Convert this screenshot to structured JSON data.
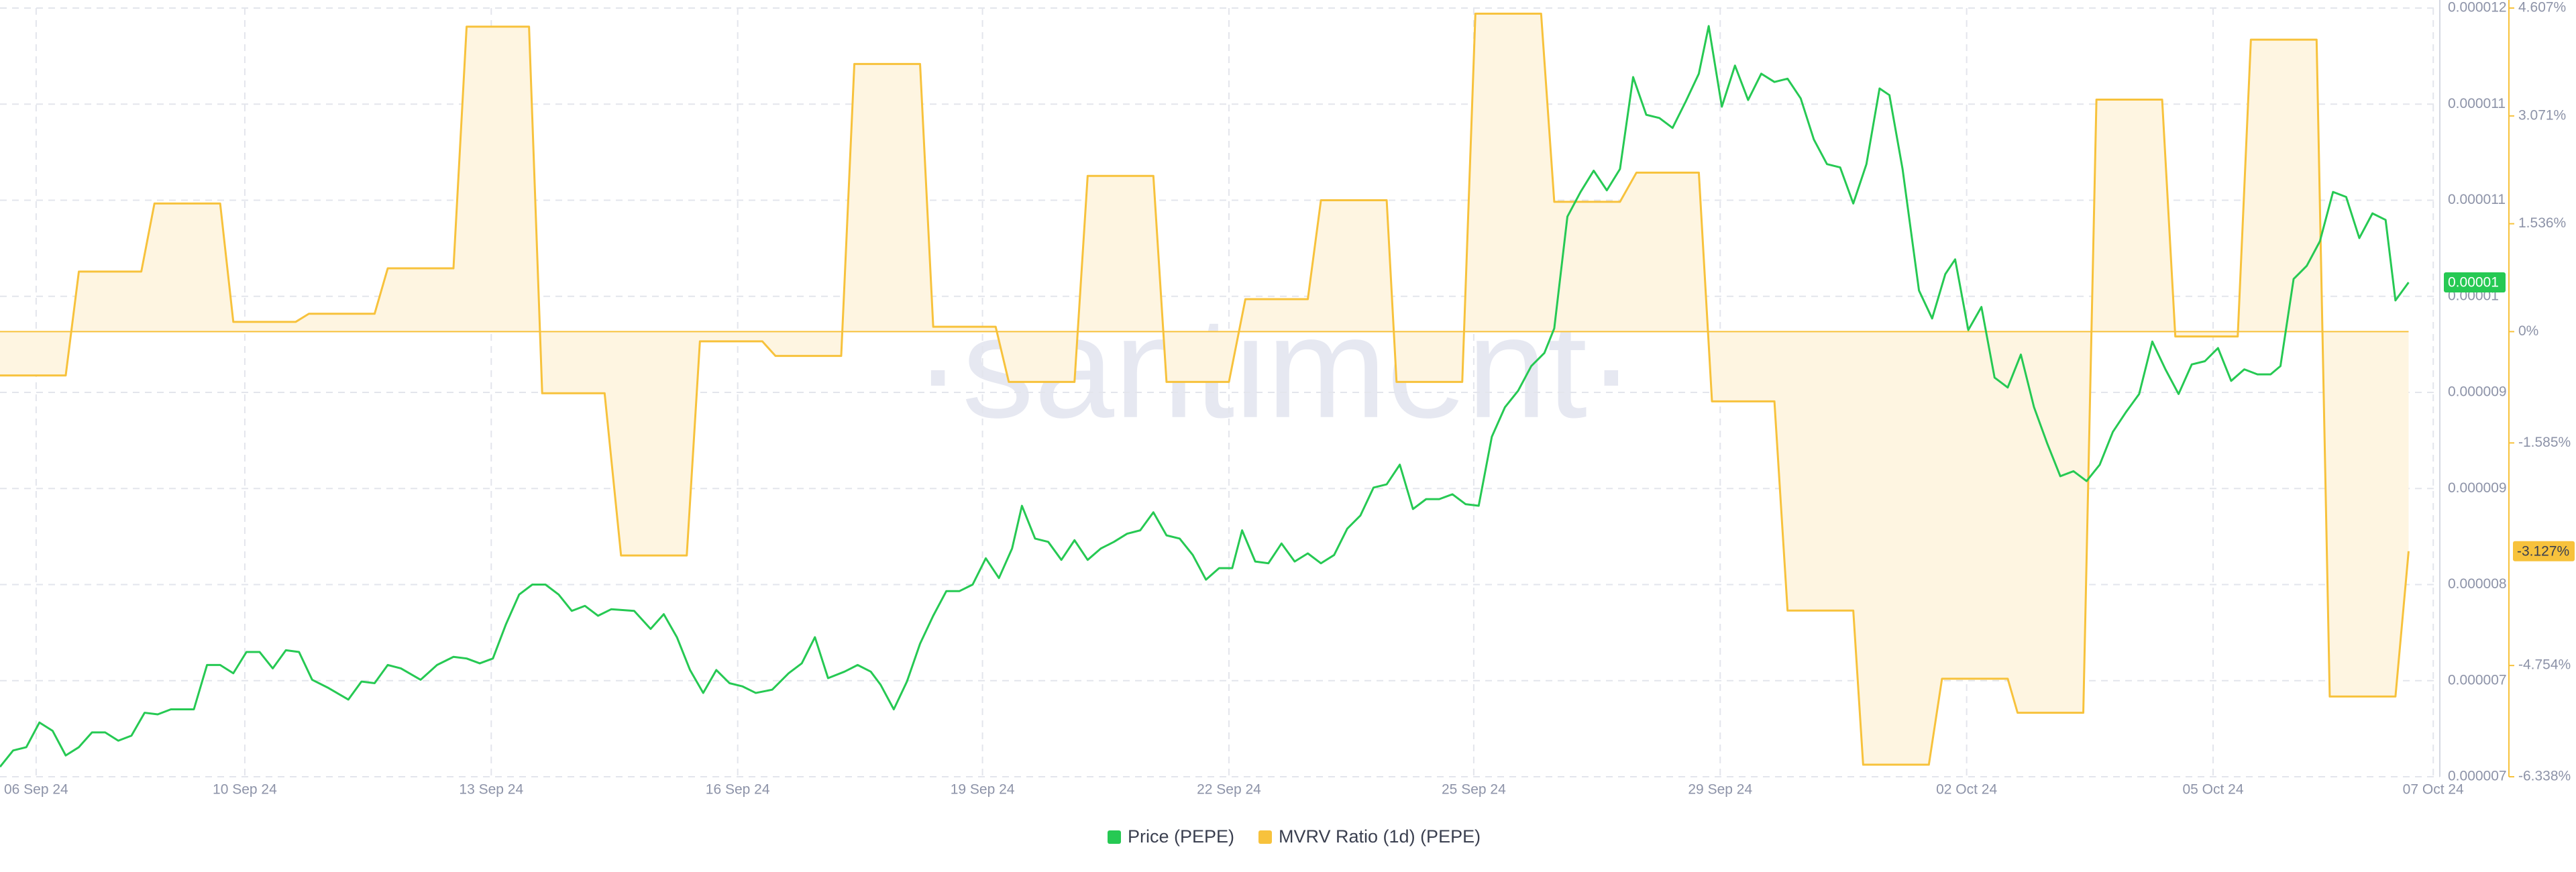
{
  "chart_data": {
    "type": "line",
    "watermark": "·santiment·",
    "grid": true,
    "xlim": [
      0,
      742.5
    ],
    "xticks": [
      {
        "value": 11,
        "label": "06 Sep 24"
      },
      {
        "value": 74.5,
        "label": "10 Sep 24"
      },
      {
        "value": 149.5,
        "label": "13 Sep 24"
      },
      {
        "value": 224.5,
        "label": "16 Sep 24"
      },
      {
        "value": 299,
        "label": "19 Sep 24"
      },
      {
        "value": 374,
        "label": "22 Sep 24"
      },
      {
        "value": 448.5,
        "label": "25 Sep 24"
      },
      {
        "value": 523.5,
        "label": "29 Sep 24"
      },
      {
        "value": 598.5,
        "label": "02 Oct 24"
      },
      {
        "value": 673.5,
        "label": "05 Oct 24"
      },
      {
        "value": 740.5,
        "label": "07 Oct 24"
      }
    ],
    "ylim": [
      6.8e-06,
      1.2e-05
    ],
    "yticks": [
      {
        "value": 6.8e-06,
        "label": "0.000007"
      },
      {
        "value": 7.45e-06,
        "label": "0.000007"
      },
      {
        "value": 8.1e-06,
        "label": "0.000008"
      },
      {
        "value": 8.75e-06,
        "label": "0.000009"
      },
      {
        "value": 9.4e-06,
        "label": "0.000009"
      },
      {
        "value": 1.005e-05,
        "label": "0.00001"
      },
      {
        "value": 1.07e-05,
        "label": "0.000011"
      },
      {
        "value": 1.135e-05,
        "label": "0.000011"
      },
      {
        "value": 1.2e-05,
        "label": "0.000012"
      }
    ],
    "y2lim": [
      -6.338,
      4.607
    ],
    "y2ticks": [
      {
        "value": -6.338,
        "label": "-6.338%"
      },
      {
        "value": -4.754,
        "label": "-4.754%"
      },
      {
        "value": -1.585,
        "label": "-1.585%"
      },
      {
        "value": 0,
        "label": "0%"
      },
      {
        "value": 1.536,
        "label": "1.536%"
      },
      {
        "value": 3.071,
        "label": "3.071%"
      },
      {
        "value": 4.607,
        "label": "4.607%"
      }
    ],
    "series": [
      {
        "name": "Price (PEPE)",
        "color": "#26c953",
        "axis": "y",
        "last_label": "0.00001",
        "x": [
          0,
          4,
          8,
          12,
          16,
          20,
          24,
          28,
          32,
          36,
          40,
          44,
          48,
          52,
          59,
          63,
          67,
          71,
          75,
          79,
          83,
          87,
          91,
          95,
          100,
          106,
          110,
          114,
          118,
          122,
          128,
          133,
          138,
          142,
          146,
          150,
          154,
          158,
          162,
          166,
          170,
          174,
          178,
          182,
          186,
          193,
          198,
          202,
          206,
          210,
          214,
          218,
          222,
          226,
          230,
          235,
          240,
          244,
          248,
          252,
          257,
          261,
          265,
          268,
          272,
          276,
          280,
          284,
          288,
          292,
          296,
          300,
          304,
          308,
          311,
          315,
          319,
          323,
          327,
          331,
          335,
          339,
          343,
          347,
          351,
          355,
          359,
          363,
          367,
          371,
          375,
          378,
          382,
          386,
          390,
          394,
          398,
          402,
          406,
          410,
          414,
          418,
          422,
          426,
          430,
          434,
          438,
          442,
          446,
          450,
          454,
          458,
          462,
          466,
          470,
          473,
          477,
          481,
          485,
          489,
          493,
          497,
          501,
          505,
          509,
          513,
          517,
          520,
          524,
          528,
          532,
          536,
          540,
          544,
          548,
          552,
          556,
          560,
          564,
          568,
          572,
          575,
          579,
          584,
          588,
          592,
          595,
          599,
          603,
          607,
          611,
          615,
          619,
          623,
          627,
          631,
          635,
          639,
          643,
          647,
          651,
          655,
          659,
          663,
          667,
          671,
          675,
          679,
          683,
          687,
          691,
          694,
          698,
          702,
          706,
          710,
          714,
          718,
          722,
          726,
          729,
          733
        ],
        "values": [
          6.867e-06,
          6.978e-06,
          7e-06,
          7.167e-06,
          7.111e-06,
          6.944e-06,
          7e-06,
          7.1e-06,
          7.1e-06,
          7.044e-06,
          7.078e-06,
          7.233e-06,
          7.222e-06,
          7.256e-06,
          7.256e-06,
          7.556e-06,
          7.556e-06,
          7.5e-06,
          7.644e-06,
          7.644e-06,
          7.533e-06,
          7.656e-06,
          7.644e-06,
          7.456e-06,
          7.4e-06,
          7.322e-06,
          7.444e-06,
          7.433e-06,
          7.556e-06,
          7.533e-06,
          7.456e-06,
          7.556e-06,
          7.611e-06,
          7.6e-06,
          7.567e-06,
          7.6e-06,
          7.833e-06,
          8.033e-06,
          8.1e-06,
          8.1e-06,
          8.033e-06,
          7.922e-06,
          7.956e-06,
          7.889e-06,
          7.933e-06,
          7.922e-06,
          7.8e-06,
          7.9e-06,
          7.744e-06,
          7.522e-06,
          7.367e-06,
          7.522e-06,
          7.433e-06,
          7.411e-06,
          7.367e-06,
          7.389e-06,
          7.5e-06,
          7.567e-06,
          7.744e-06,
          7.467e-06,
          7.511e-06,
          7.556e-06,
          7.511e-06,
          7.422e-06,
          7.256e-06,
          7.444e-06,
          7.7e-06,
          7.889e-06,
          8.056e-06,
          8.056e-06,
          8.1e-06,
          8.278e-06,
          8.144e-06,
          8.344e-06,
          8.633e-06,
          8.411e-06,
          8.389e-06,
          8.267e-06,
          8.4e-06,
          8.267e-06,
          8.344e-06,
          8.389e-06,
          8.444e-06,
          8.467e-06,
          8.589e-06,
          8.433e-06,
          8.411e-06,
          8.3e-06,
          8.133e-06,
          8.211e-06,
          8.211e-06,
          8.467e-06,
          8.256e-06,
          8.244e-06,
          8.378e-06,
          8.256e-06,
          8.311e-06,
          8.244e-06,
          8.3e-06,
          8.478e-06,
          8.567e-06,
          8.756e-06,
          8.778e-06,
          8.911e-06,
          8.611e-06,
          8.678e-06,
          8.678e-06,
          8.711e-06,
          8.644e-06,
          8.633e-06,
          9.1e-06,
          9.3e-06,
          9.411e-06,
          9.578e-06,
          9.667e-06,
          9.833e-06,
          1.0589e-05,
          1.0756e-05,
          1.09e-05,
          1.0767e-05,
          1.0911e-05,
          1.1533e-05,
          1.1278e-05,
          1.1256e-05,
          1.1189e-05,
          1.1367e-05,
          1.1556e-05,
          1.1878e-05,
          1.1333e-05,
          1.1611e-05,
          1.1378e-05,
          1.1556e-05,
          1.15e-05,
          1.1522e-05,
          1.1389e-05,
          1.1111e-05,
          1.0944e-05,
          1.0922e-05,
          1.0678e-05,
          1.0944e-05,
          1.1456e-05,
          1.1411e-05,
          1.0911e-05,
          1.0089e-05,
          9.9e-06,
          1.02e-05,
          1.03e-05,
          9.822e-06,
          9.978e-06,
          9.5e-06,
          9.433e-06,
          9.656e-06,
          9.3e-06,
          9.056e-06,
          8.833e-06,
          8.867e-06,
          8.8e-06,
          8.911e-06,
          9.133e-06,
          9.267e-06,
          9.389e-06,
          9.744e-06,
          9.556e-06,
          9.389e-06,
          9.589e-06,
          9.611e-06,
          9.7e-06,
          9.478e-06,
          9.556e-06,
          9.522e-06,
          9.522e-06,
          9.578e-06,
          1.0167e-05,
          1.0256e-05,
          1.0422e-05,
          1.0756e-05,
          1.0722e-05,
          1.0444e-05,
          1.0611e-05,
          1.0567e-05,
          1.0022e-05,
          1.0144e-05
        ]
      },
      {
        "name": "MVRV Ratio (1d) (PEPE)",
        "color": "#f7c23c",
        "fill": "#fef5e1",
        "axis": "y2",
        "last_label": "-3.127%",
        "x": [
          0,
          20,
          24,
          43,
          47,
          67,
          71,
          90,
          94,
          114,
          118,
          138,
          142,
          161,
          165,
          184,
          189,
          209,
          213,
          232,
          236,
          256,
          260,
          280,
          284,
          303,
          307,
          327,
          331,
          351,
          355,
          374,
          379,
          398,
          402,
          422,
          425,
          445,
          449,
          469,
          473,
          493,
          498,
          517,
          521,
          540,
          544,
          564,
          567,
          587,
          591,
          611,
          614,
          634,
          638,
          658,
          662,
          681,
          685,
          705,
          709,
          729,
          733
        ],
        "values": [
          -0.624,
          -0.624,
          0.855,
          0.855,
          1.824,
          1.824,
          0.139,
          0.139,
          0.254,
          0.254,
          0.901,
          0.901,
          4.342,
          4.342,
          -0.878,
          -0.878,
          -3.187,
          -3.187,
          -0.139,
          -0.139,
          -0.346,
          -0.346,
          3.811,
          3.811,
          0.069,
          0.069,
          -0.716,
          -0.716,
          2.217,
          2.217,
          -0.716,
          -0.716,
          0.462,
          0.462,
          1.871,
          1.871,
          -0.716,
          -0.716,
          4.527,
          4.527,
          1.848,
          1.848,
          2.263,
          2.263,
          -0.993,
          -0.993,
          -3.972,
          -3.972,
          -6.166,
          -6.166,
          -4.942,
          -4.942,
          -5.427,
          -5.427,
          3.303,
          3.303,
          -0.069,
          -0.069,
          4.157,
          4.157,
          -5.196,
          -5.196,
          -3.127
        ]
      }
    ]
  }
}
